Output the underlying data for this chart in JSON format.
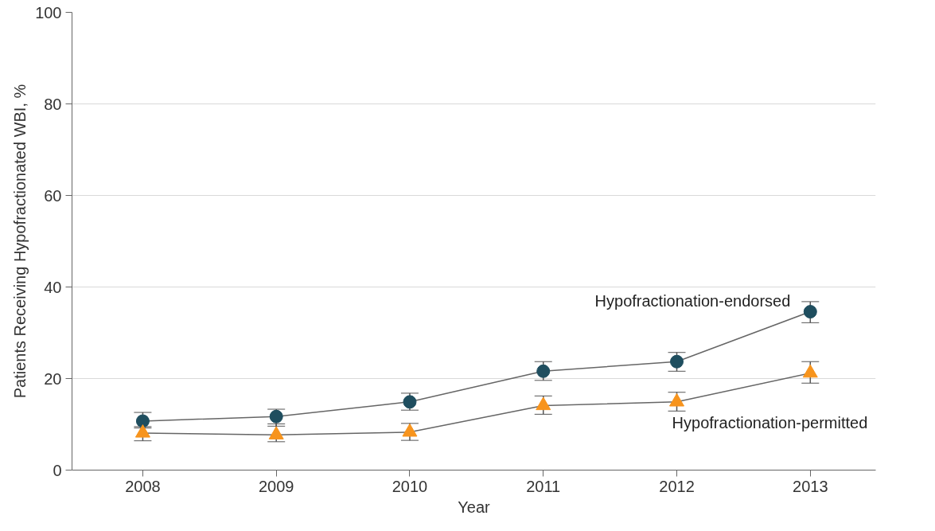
{
  "chart_data": {
    "type": "line",
    "xlabel": "Year",
    "ylabel": "Patients Receiving Hypofractionated WBI, %",
    "x": [
      2008,
      2009,
      2010,
      2011,
      2012,
      2013
    ],
    "xlim": [
      2007.47,
      2013.49
    ],
    "xticks": [
      2008,
      2009,
      2010,
      2011,
      2012,
      2013
    ],
    "ylim": [
      0,
      100
    ],
    "yticks": [
      0,
      20,
      40,
      60,
      80,
      100
    ],
    "grid": "y",
    "series": [
      {
        "name": "Hypofractionation-endorsed",
        "color": "#1f4e5f",
        "marker": "circle",
        "values": [
          10.7,
          11.7,
          14.9,
          21.6,
          23.7,
          34.6
        ],
        "errors": [
          [
            9.5,
            12.6
          ],
          [
            9.6,
            13.3
          ],
          [
            13.1,
            16.8
          ],
          [
            19.6,
            23.7
          ],
          [
            21.6,
            25.7
          ],
          [
            32.2,
            36.8
          ]
        ]
      },
      {
        "name": "Hypofractionation-permitted",
        "color": "#f7941d",
        "marker": "triangle",
        "values": [
          8.1,
          7.7,
          8.3,
          14.1,
          14.9,
          21.2
        ],
        "errors": [
          [
            6.4,
            9.2
          ],
          [
            6.2,
            10.1
          ],
          [
            6.5,
            10.2
          ],
          [
            12.2,
            16.2
          ],
          [
            12.9,
            17.0
          ],
          [
            19.0,
            23.7
          ]
        ]
      }
    ]
  }
}
